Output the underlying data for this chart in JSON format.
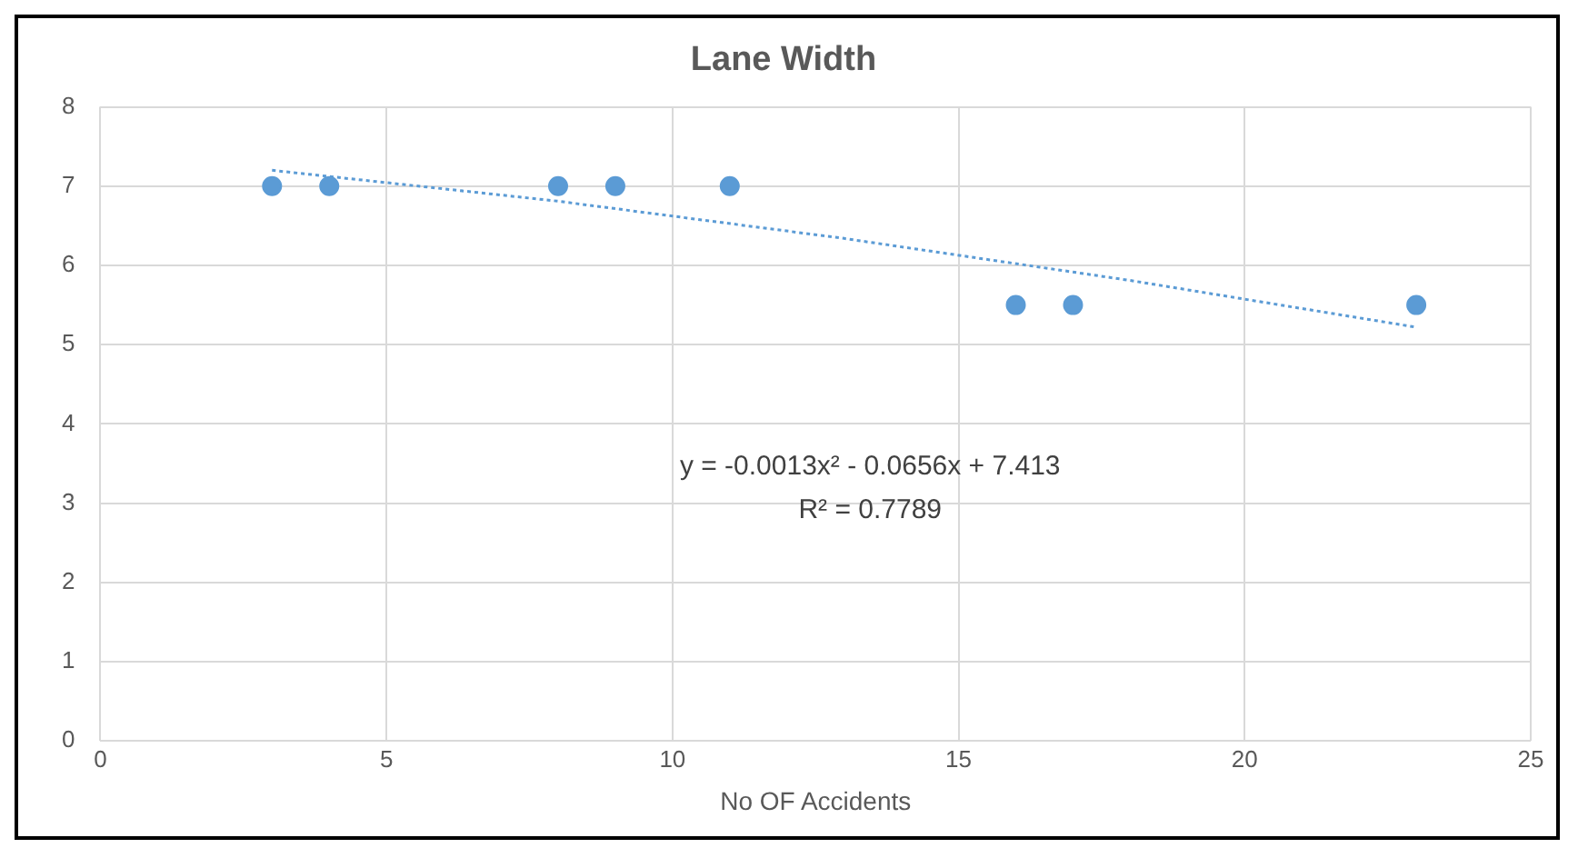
{
  "chart_data": {
    "type": "scatter",
    "title": "Lane Width",
    "xlabel": "No OF Accidents",
    "xlim": [
      0,
      25
    ],
    "xticks": [
      0,
      5,
      10,
      15,
      20,
      25
    ],
    "ylim": [
      0,
      8
    ],
    "yticks": [
      0,
      1,
      2,
      3,
      4,
      5,
      6,
      7,
      8
    ],
    "grid": true,
    "legend": false,
    "marker": "circle",
    "series": [
      {
        "color": "#5b9bd5",
        "x": [
          3,
          4,
          8,
          9,
          11,
          16,
          17,
          23
        ],
        "values": [
          7,
          7,
          7,
          7,
          7,
          5.5,
          5.5,
          5.5
        ]
      },
      {
        "type": "line",
        "color": "#5b9bd5",
        "line_style": "dotted",
        "marker": "none",
        "x": [
          3,
          8,
          13,
          18,
          23
        ],
        "values": [
          7.2,
          6.81,
          6.34,
          5.81,
          5.22
        ]
      }
    ],
    "annotations": [
      "y = -0.0013x² - 0.0656x + 7.413",
      "R² = 0.7789"
    ]
  }
}
